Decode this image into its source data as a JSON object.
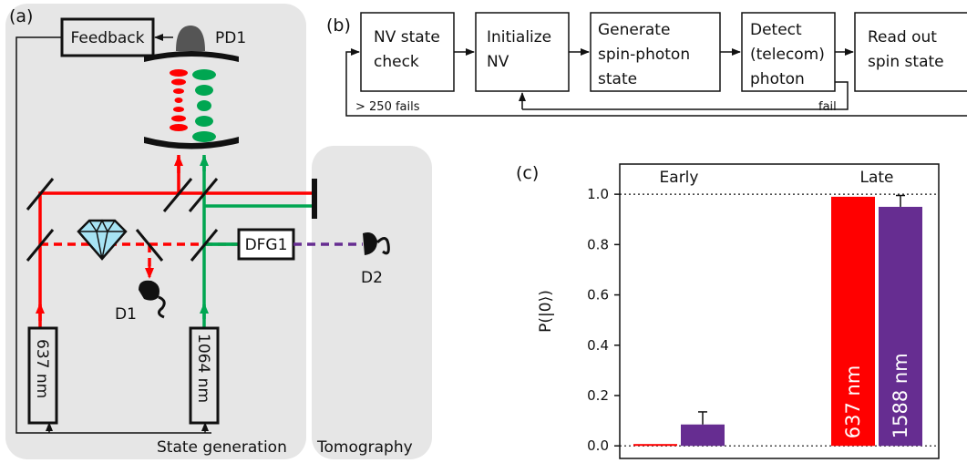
{
  "panel_a": {
    "letter": "(a)",
    "feedback_label": "Feedback",
    "pd1_label": "PD1",
    "dfg1_label": "DFG1",
    "d1_label": "D1",
    "d2_label": "D2",
    "laser_637_label": "637 nm",
    "laser_1064_label": "1064 nm",
    "state_generation_label": "State generation",
    "tomography_label": "Tomography"
  },
  "panel_b": {
    "letter": "(b)",
    "steps": [
      [
        "NV state",
        "check"
      ],
      [
        "Initialize",
        "NV"
      ],
      [
        "Generate",
        "spin-photon",
        "state"
      ],
      [
        "Detect",
        "(telecom)",
        "photon"
      ],
      [
        "Read out",
        "spin state"
      ]
    ],
    "fails_label": "> 250 fails",
    "fail_label": "fail"
  },
  "panel_c": {
    "letter": "(c)"
  },
  "colors": {
    "red": "#ff0000",
    "green": "#00a651",
    "purple": "#662d91",
    "panel_bg": "#e6e6e6"
  },
  "chart_data": {
    "type": "bar",
    "categories": [
      "Early",
      "Late"
    ],
    "series": [
      {
        "name": "637 nm",
        "color": "#ff0000",
        "values": [
          0.0,
          0.99
        ],
        "errors": [
          0.0,
          0.0
        ]
      },
      {
        "name": "1588 nm",
        "color": "#662d91",
        "values": [
          0.085,
          0.95
        ],
        "errors": [
          0.05,
          0.045
        ]
      }
    ],
    "ylabel": "P(|0⟩)",
    "yticks": [
      0.0,
      0.2,
      0.4,
      0.6,
      0.8,
      1.0
    ],
    "ytick_labels": [
      "0.0",
      "0.2",
      "0.4",
      "0.6",
      "0.8",
      "1.0"
    ],
    "ylim": [
      -0.05,
      1.12
    ],
    "reference_lines": [
      0.0,
      1.0
    ]
  }
}
